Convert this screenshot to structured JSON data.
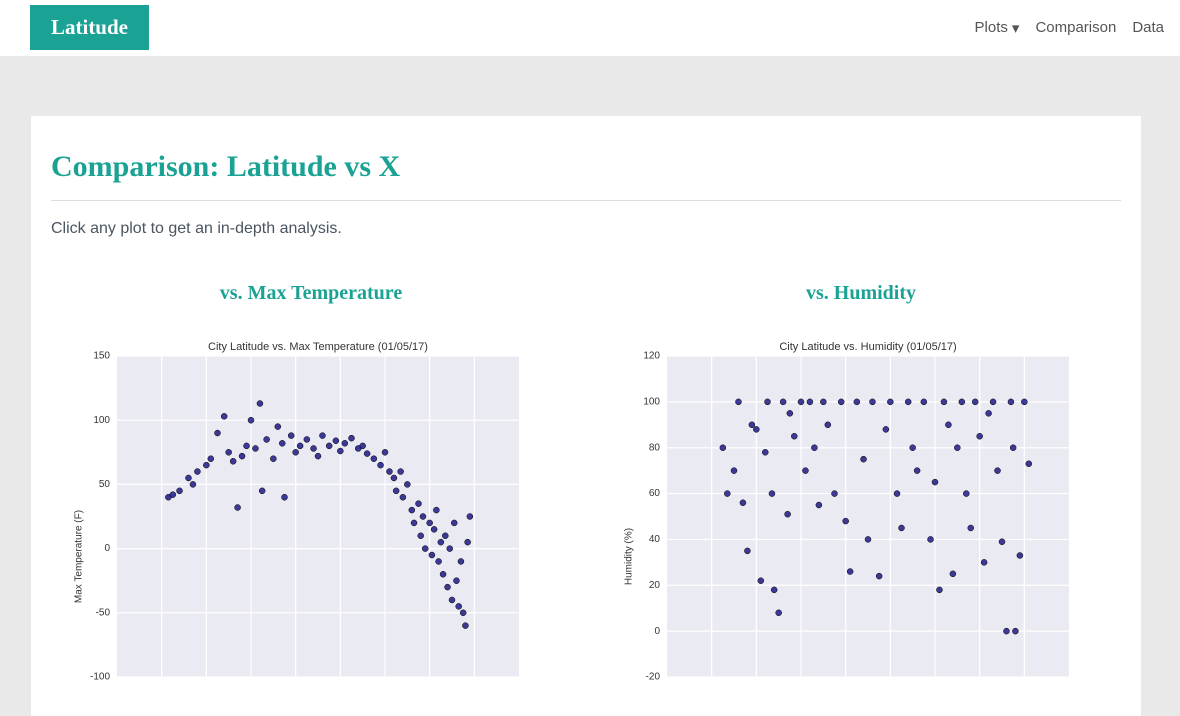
{
  "navbar": {
    "brand": "Latitude",
    "items": [
      "Plots",
      "Comparison",
      "Data"
    ]
  },
  "page": {
    "heading": "Comparison: Latitude vs X",
    "intro": "Click any plot to get an in-depth analysis.",
    "plot_headings": [
      "vs. Max Temperature",
      "vs. Humidity"
    ]
  },
  "chart_data": [
    {
      "type": "scatter",
      "title": "City Latitude vs. Max Temperature (01/05/17)",
      "y_label": "Max Temperature (F)",
      "color": "#1c1a85",
      "grid": true,
      "xlim": [
        -100,
        80
      ],
      "xticks": [
        -80,
        -60,
        -40,
        -20,
        0,
        20,
        40,
        60
      ],
      "ylim": [
        -100,
        150
      ],
      "yticks": [
        -100,
        -50,
        0,
        50,
        100,
        150
      ],
      "x": [
        -77,
        -75,
        -72,
        -68,
        -66,
        -64,
        -60,
        -58,
        -55,
        -52,
        -50,
        -48,
        -46,
        -44,
        -42,
        -40,
        -38,
        -36,
        -35,
        -33,
        -30,
        -28,
        -26,
        -25,
        -22,
        -20,
        -18,
        -15,
        -12,
        -10,
        -8,
        -5,
        -2,
        0,
        2,
        5,
        8,
        10,
        12,
        15,
        18,
        20,
        22,
        24,
        25,
        27,
        28,
        30,
        32,
        33,
        35,
        36,
        37,
        38,
        40,
        41,
        42,
        43,
        44,
        45,
        46,
        47,
        48,
        49,
        50,
        51,
        52,
        53,
        54,
        55,
        56,
        57,
        58
      ],
      "values": [
        40,
        42,
        45,
        55,
        50,
        60,
        65,
        70,
        90,
        103,
        75,
        68,
        32,
        72,
        80,
        100,
        78,
        113,
        45,
        85,
        70,
        95,
        82,
        40,
        88,
        75,
        80,
        85,
        78,
        72,
        88,
        80,
        84,
        76,
        82,
        86,
        78,
        80,
        74,
        70,
        65,
        75,
        60,
        55,
        45,
        60,
        40,
        50,
        30,
        20,
        35,
        10,
        25,
        0,
        20,
        -5,
        15,
        30,
        -10,
        5,
        -20,
        10,
        -30,
        0,
        -40,
        20,
        -25,
        -45,
        -10,
        -50,
        -60,
        5,
        25
      ]
    },
    {
      "type": "scatter",
      "title": "City Latitude vs. Humidity (01/05/17)",
      "y_label": "Humidity (%)",
      "color": "#1c1a85",
      "grid": true,
      "xlim": [
        -100,
        80
      ],
      "xticks": [
        -80,
        -60,
        -40,
        -20,
        0,
        20,
        40,
        60
      ],
      "ylim": [
        -20,
        120
      ],
      "yticks": [
        -20,
        0,
        20,
        40,
        60,
        80,
        100,
        120
      ],
      "x": [
        -75,
        -73,
        -70,
        -68,
        -66,
        -64,
        -62,
        -60,
        -58,
        -56,
        -55,
        -53,
        -52,
        -50,
        -48,
        -46,
        -45,
        -43,
        -40,
        -38,
        -36,
        -34,
        -32,
        -30,
        -28,
        -25,
        -22,
        -20,
        -18,
        -15,
        -12,
        -10,
        -8,
        -5,
        -2,
        0,
        3,
        5,
        8,
        10,
        12,
        15,
        18,
        20,
        22,
        24,
        26,
        28,
        30,
        32,
        34,
        36,
        38,
        40,
        42,
        44,
        46,
        48,
        50,
        52,
        54,
        55,
        56,
        58,
        60,
        62
      ],
      "values": [
        80,
        60,
        70,
        100,
        56,
        35,
        90,
        88,
        22,
        78,
        100,
        60,
        18,
        8,
        100,
        51,
        95,
        85,
        100,
        70,
        100,
        80,
        55,
        100,
        90,
        60,
        100,
        48,
        26,
        100,
        75,
        40,
        100,
        24,
        88,
        100,
        60,
        45,
        100,
        80,
        70,
        100,
        40,
        65,
        18,
        100,
        90,
        25,
        80,
        100,
        60,
        45,
        100,
        85,
        30,
        95,
        100,
        70,
        39,
        0,
        100,
        80,
        0,
        33,
        100,
        73
      ]
    }
  ]
}
